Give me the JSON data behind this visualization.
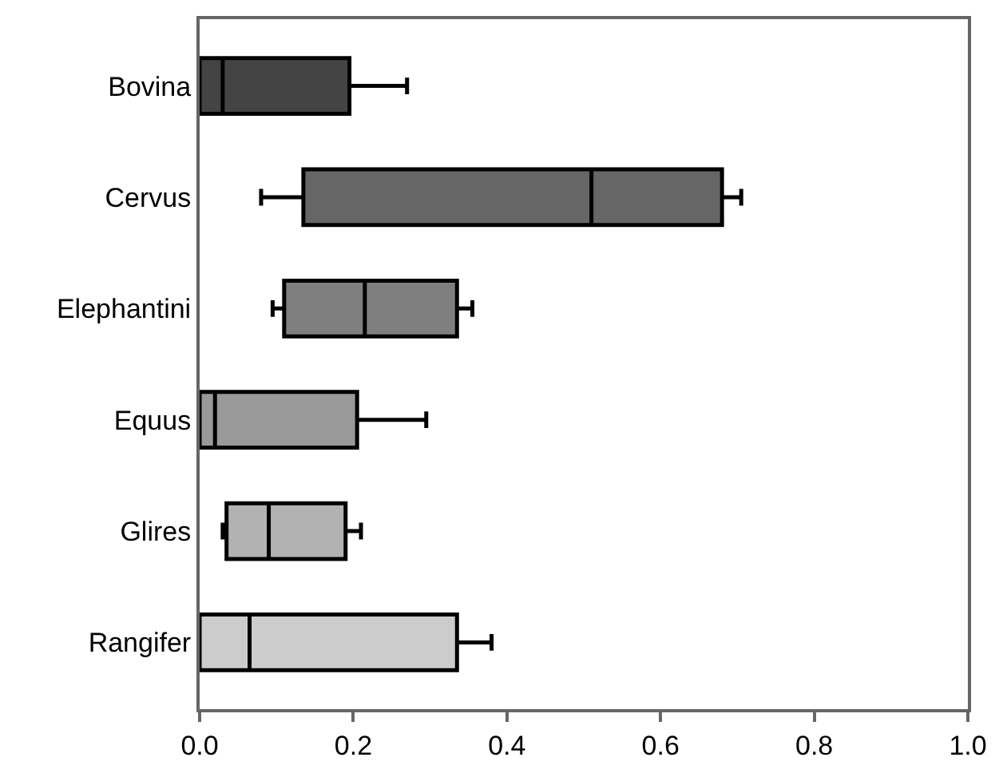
{
  "chart_data": {
    "type": "box",
    "orientation": "horizontal",
    "categories": [
      "Bovina",
      "Cervus",
      "Elephantini",
      "Equus",
      "Glires",
      "Rangifer"
    ],
    "boxes": [
      {
        "low": 0,
        "q1": 0,
        "median": 0.03,
        "q3": 0.195,
        "high": 0.27
      },
      {
        "low": 0.08,
        "q1": 0.135,
        "median": 0.51,
        "q3": 0.68,
        "high": 0.705
      },
      {
        "low": 0.095,
        "q1": 0.11,
        "median": 0.215,
        "q3": 0.335,
        "high": 0.355
      },
      {
        "low": 0,
        "q1": 0,
        "median": 0.02,
        "q3": 0.205,
        "high": 0.295
      },
      {
        "low": 0.03,
        "q1": 0.035,
        "median": 0.09,
        "q3": 0.19,
        "high": 0.21
      },
      {
        "low": 0,
        "q1": 0,
        "median": 0.065,
        "q3": 0.335,
        "high": 0.38
      }
    ],
    "colors": [
      "#444444",
      "#666666",
      "#7f7f7f",
      "#999999",
      "#b2b2b2",
      "#cccccc"
    ],
    "xlim": [
      0,
      1
    ],
    "xticks": [
      {
        "value": 0,
        "label": "0.0"
      },
      0.2,
      0.4,
      0.6,
      0.8,
      {
        "value": 1,
        "label": "1.0"
      }
    ]
  }
}
